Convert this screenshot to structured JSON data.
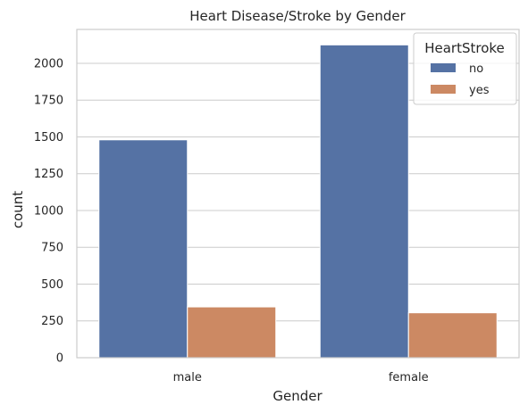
{
  "chart_data": {
    "type": "bar",
    "title": "Heart Disease/Stroke by Gender",
    "xlabel": "Gender",
    "ylabel": "count",
    "categories": [
      "male",
      "female"
    ],
    "series": [
      {
        "name": "no",
        "values": [
          1480,
          2125
        ],
        "color": "#5572a4"
      },
      {
        "name": "yes",
        "values": [
          345,
          305
        ],
        "color": "#cc8963"
      }
    ],
    "legend": {
      "title": "HeartStroke",
      "placement": "top-right"
    },
    "yticks": [
      0,
      250,
      500,
      750,
      1000,
      1250,
      1500,
      1750,
      2000
    ],
    "ylim": [
      0,
      2230
    ],
    "grid": "horizontal",
    "colors": {
      "grid": "#cccccc",
      "spine": "#cccccc",
      "text": "#262626",
      "bar_edge": "#ffffff"
    }
  }
}
